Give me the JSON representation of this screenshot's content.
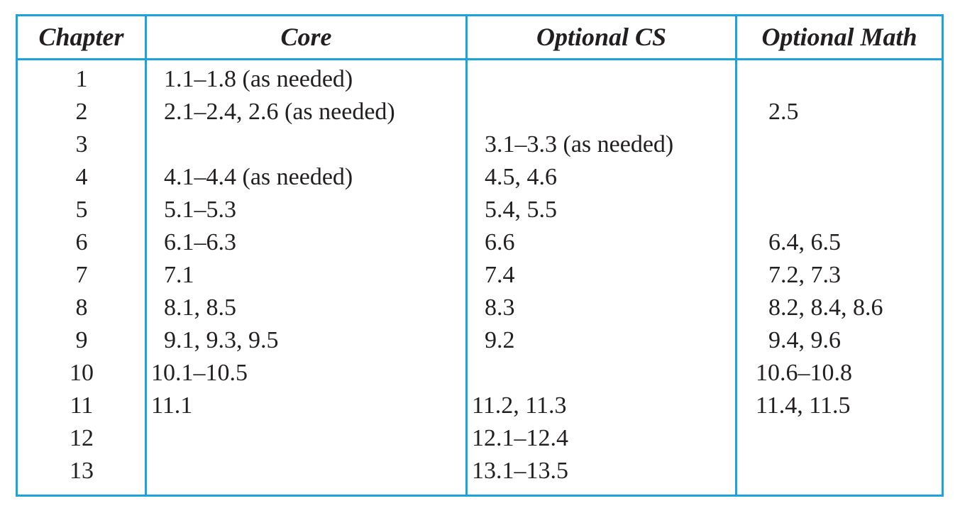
{
  "table": {
    "headers": {
      "chapter": "Chapter",
      "core": "Core",
      "optional_cs": "Optional CS",
      "optional_math": "Optional Math"
    },
    "rows": [
      {
        "chapter": "1",
        "core": "1.1–1.8 (as needed)",
        "optional_cs": "",
        "optional_math": ""
      },
      {
        "chapter": "2",
        "core": "2.1–2.4, 2.6 (as needed)",
        "optional_cs": "",
        "optional_math": "2.5"
      },
      {
        "chapter": "3",
        "core": "",
        "optional_cs": "3.1–3.3 (as needed)",
        "optional_math": ""
      },
      {
        "chapter": "4",
        "core": "4.1–4.4 (as needed)",
        "optional_cs": "4.5, 4.6",
        "optional_math": ""
      },
      {
        "chapter": "5",
        "core": "5.1–5.3",
        "optional_cs": "5.4, 5.5",
        "optional_math": ""
      },
      {
        "chapter": "6",
        "core": "6.1–6.3",
        "optional_cs": "6.6",
        "optional_math": "6.4, 6.5"
      },
      {
        "chapter": "7",
        "core": "7.1",
        "optional_cs": "7.4",
        "optional_math": "7.2, 7.3"
      },
      {
        "chapter": "8",
        "core": "8.1, 8.5",
        "optional_cs": "8.3",
        "optional_math": "8.2, 8.4, 8.6"
      },
      {
        "chapter": "9",
        "core": "9.1, 9.3, 9.5",
        "optional_cs": "9.2",
        "optional_math": "9.4, 9.6"
      },
      {
        "chapter": "10",
        "core": "10.1–10.5",
        "optional_cs": "",
        "optional_math": "10.6–10.8"
      },
      {
        "chapter": "11",
        "core": "11.1",
        "optional_cs": "11.2, 11.3",
        "optional_math": "11.4, 11.5"
      },
      {
        "chapter": "12",
        "core": "",
        "optional_cs": "12.1–12.4",
        "optional_math": ""
      },
      {
        "chapter": "13",
        "core": "",
        "optional_cs": "13.1–13.5",
        "optional_math": ""
      }
    ]
  },
  "colors": {
    "rule": "#1aa3dc",
    "text": "#231f20"
  }
}
